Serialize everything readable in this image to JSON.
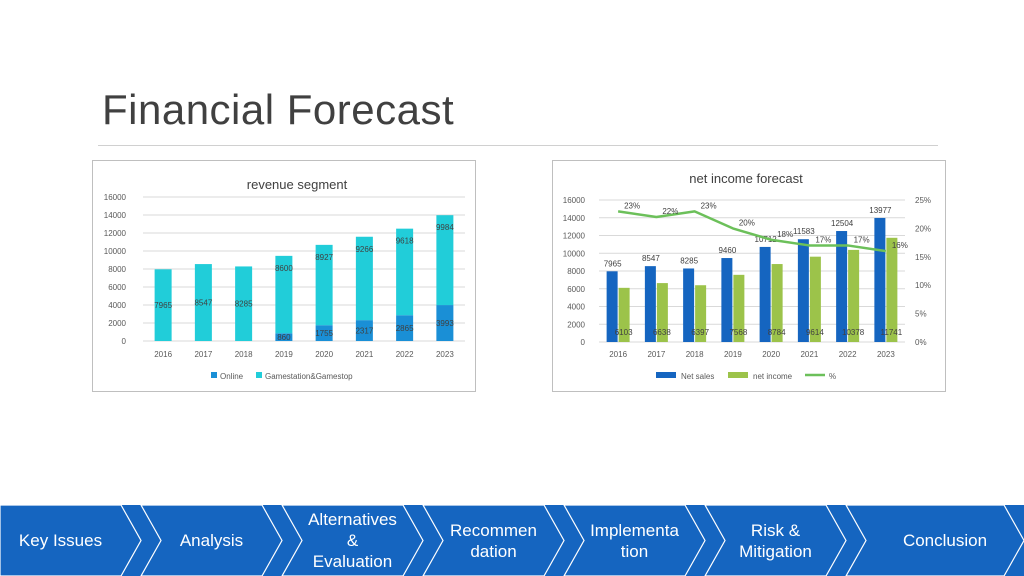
{
  "slide": {
    "title": "Financial Forecast"
  },
  "colors": {
    "online": "#1a8fd6",
    "gamestation": "#21cdd9",
    "net_sales": "#1565c0",
    "net_income": "#9cc34a",
    "percent": "#6cc05a",
    "nav_bg": "#1565c0",
    "nav_divider": "#ffffff"
  },
  "chart_data": [
    {
      "type": "bar",
      "stacked": true,
      "title": "revenue segment",
      "categories": [
        "2016",
        "2017",
        "2018",
        "2019",
        "2020",
        "2021",
        "2022",
        "2023"
      ],
      "series": [
        {
          "name": "Online",
          "values": [
            0,
            0,
            0,
            860,
            1755,
            2317,
            2865,
            3993
          ],
          "labels": [
            "",
            "",
            "",
            "860",
            "1755",
            "2317",
            "2865",
            "3993"
          ]
        },
        {
          "name": "Gamestation&Gamestop",
          "values": [
            7965,
            8547,
            8285,
            8600,
            8927,
            9266,
            9618,
            9984
          ],
          "labels": [
            "7965",
            "8547",
            "8285",
            "8600",
            "8927",
            "9266",
            "9618",
            "9984"
          ]
        }
      ],
      "y_ticks": [
        "0",
        "2000",
        "4000",
        "6000",
        "8000",
        "10000",
        "12000",
        "14000",
        "16000"
      ],
      "ylim": [
        0,
        16000
      ],
      "legend": "bottom",
      "grid": true
    },
    {
      "type": "bar",
      "title": "net income forecast",
      "categories": [
        "2016",
        "2017",
        "2018",
        "2019",
        "2020",
        "2021",
        "2022",
        "2023"
      ],
      "series": [
        {
          "name": "Net sales",
          "values": [
            7965,
            8547,
            8285,
            9460,
            10712,
            11583,
            12504,
            13977
          ],
          "labels": [
            "7965",
            "8547",
            "8285",
            "9460",
            "10712",
            "11583",
            "12504",
            "13977"
          ]
        },
        {
          "name": "net income",
          "values": [
            6103,
            6638,
            6397,
            7568,
            8784,
            9614,
            10378,
            11741
          ],
          "labels": [
            "6103",
            "6638",
            "6397",
            "7568",
            "8784",
            "9614",
            "10378",
            "11741"
          ]
        },
        {
          "name": "%",
          "type": "line",
          "axis": "right",
          "values": [
            0.23,
            0.22,
            0.23,
            0.2,
            0.18,
            0.17,
            0.17,
            0.16
          ],
          "labels": [
            "23%",
            "22%",
            "23%",
            "20%",
            "18%",
            "17%",
            "17%",
            "16%"
          ]
        }
      ],
      "y_ticks": [
        "0",
        "2000",
        "4000",
        "6000",
        "8000",
        "10000",
        "12000",
        "14000",
        "16000"
      ],
      "y2_ticks": [
        "0%",
        "5%",
        "10%",
        "15%",
        "20%",
        "25%"
      ],
      "ylim": [
        0,
        16000
      ],
      "y2lim": [
        0,
        0.25
      ],
      "legend": "bottom",
      "grid": true
    }
  ],
  "nav": {
    "items": [
      {
        "label": "Key Issues"
      },
      {
        "label": "Analysis"
      },
      {
        "label": "Alternatives\n&\nEvaluation"
      },
      {
        "label": "Recommen\ndation"
      },
      {
        "label": "Implementa\ntion"
      },
      {
        "label": "Risk &\nMitigation"
      },
      {
        "label": "Conclusion"
      }
    ]
  }
}
